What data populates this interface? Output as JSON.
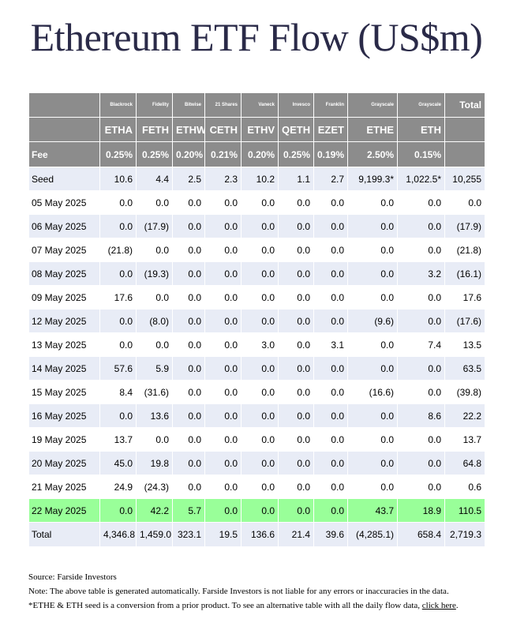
{
  "title": "Ethereum ETF Flow (US$m)",
  "table": {
    "issuers": [
      "",
      "Blackrock",
      "Fidelity",
      "Bitwise",
      "21 Shares",
      "Vaneck",
      "Invesco",
      "Franklin",
      "Grayscale",
      "Grayscale",
      "Total"
    ],
    "tickers": [
      "",
      "ETHA",
      "FETH",
      "ETHW",
      "CETH",
      "ETHV",
      "QETH",
      "EZET",
      "ETHE",
      "ETH",
      ""
    ],
    "fees": [
      "Fee",
      "0.25%",
      "0.25%",
      "0.20%",
      "0.21%",
      "0.20%",
      "0.25%",
      "0.19%",
      "2.50%",
      "0.15%",
      ""
    ],
    "rows": [
      {
        "cells": [
          "Seed",
          "10.6",
          "4.4",
          "2.5",
          "2.3",
          "10.2",
          "1.1",
          "2.7",
          "9,199.3*",
          "1,022.5*",
          "10,255"
        ]
      },
      {
        "cells": [
          "05 May 2025",
          "0.0",
          "0.0",
          "0.0",
          "0.0",
          "0.0",
          "0.0",
          "0.0",
          "0.0",
          "0.0",
          "0.0"
        ]
      },
      {
        "cells": [
          "06 May 2025",
          "0.0",
          "(17.9)",
          "0.0",
          "0.0",
          "0.0",
          "0.0",
          "0.0",
          "0.0",
          "0.0",
          "(17.9)"
        ]
      },
      {
        "cells": [
          "07 May 2025",
          "(21.8)",
          "0.0",
          "0.0",
          "0.0",
          "0.0",
          "0.0",
          "0.0",
          "0.0",
          "0.0",
          "(21.8)"
        ]
      },
      {
        "cells": [
          "08 May 2025",
          "0.0",
          "(19.3)",
          "0.0",
          "0.0",
          "0.0",
          "0.0",
          "0.0",
          "0.0",
          "3.2",
          "(16.1)"
        ]
      },
      {
        "cells": [
          "09 May 2025",
          "17.6",
          "0.0",
          "0.0",
          "0.0",
          "0.0",
          "0.0",
          "0.0",
          "0.0",
          "0.0",
          "17.6"
        ]
      },
      {
        "cells": [
          "12 May 2025",
          "0.0",
          "(8.0)",
          "0.0",
          "0.0",
          "0.0",
          "0.0",
          "0.0",
          "(9.6)",
          "0.0",
          "(17.6)"
        ]
      },
      {
        "cells": [
          "13 May 2025",
          "0.0",
          "0.0",
          "0.0",
          "0.0",
          "3.0",
          "0.0",
          "3.1",
          "0.0",
          "7.4",
          "13.5"
        ]
      },
      {
        "cells": [
          "14 May 2025",
          "57.6",
          "5.9",
          "0.0",
          "0.0",
          "0.0",
          "0.0",
          "0.0",
          "0.0",
          "0.0",
          "63.5"
        ]
      },
      {
        "cells": [
          "15 May 2025",
          "8.4",
          "(31.6)",
          "0.0",
          "0.0",
          "0.0",
          "0.0",
          "0.0",
          "(16.6)",
          "0.0",
          "(39.8)"
        ]
      },
      {
        "cells": [
          "16 May 2025",
          "0.0",
          "13.6",
          "0.0",
          "0.0",
          "0.0",
          "0.0",
          "0.0",
          "0.0",
          "8.6",
          "22.2"
        ]
      },
      {
        "cells": [
          "19 May 2025",
          "13.7",
          "0.0",
          "0.0",
          "0.0",
          "0.0",
          "0.0",
          "0.0",
          "0.0",
          "0.0",
          "13.7"
        ]
      },
      {
        "cells": [
          "20 May 2025",
          "45.0",
          "19.8",
          "0.0",
          "0.0",
          "0.0",
          "0.0",
          "0.0",
          "0.0",
          "0.0",
          "64.8"
        ]
      },
      {
        "cells": [
          "21 May 2025",
          "24.9",
          "(24.3)",
          "0.0",
          "0.0",
          "0.0",
          "0.0",
          "0.0",
          "0.0",
          "0.0",
          "0.6"
        ]
      },
      {
        "cells": [
          "22 May 2025",
          "0.0",
          "42.2",
          "5.7",
          "0.0",
          "0.0",
          "0.0",
          "0.0",
          "43.7",
          "18.9",
          "110.5"
        ],
        "highlight": true
      }
    ],
    "total": [
      "Total",
      "4,346.8",
      "1,459.0",
      "323.1",
      "19.5",
      "136.6",
      "21.4",
      "39.6",
      "(4,285.1)",
      "658.4",
      "2,719.3"
    ]
  },
  "notes": {
    "source": "Source: Farside Investors",
    "note": "Note: The above table is generated automatically. Farside Investors is not liable for any errors or inaccuracies in the data.",
    "seed_note": "*ETHE & ETH seed is a conversion from a prior product.  To see an alternative table with all the daily flow data, ",
    "link": "click here",
    "link_suffix": "."
  },
  "colors": {
    "header_bg": "#8c8c8c",
    "row_alt_bg": "#e8ecf6",
    "highlight_bg": "#99ff99",
    "negative_text": "#d40000",
    "title_text": "#2a2a48"
  }
}
